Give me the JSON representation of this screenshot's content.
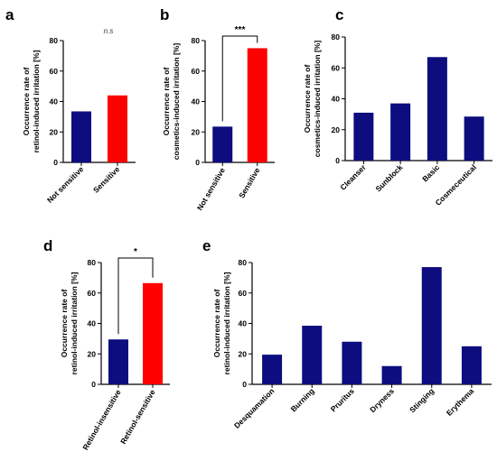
{
  "chart_data": [
    {
      "type": "bar",
      "panel": "a",
      "categories": [
        "Not sensitive",
        "Sensitive"
      ],
      "values": [
        33.5,
        44
      ],
      "colors": [
        "#0d0d80",
        "#ff0000"
      ],
      "ylabel": [
        "Occurrence rate of",
        "retinol-induced irritation [%]"
      ],
      "ylim": [
        0,
        80
      ],
      "yticks": [
        0,
        20,
        40,
        60,
        80
      ],
      "annotation": "n.s",
      "significance": null
    },
    {
      "type": "bar",
      "panel": "b",
      "categories": [
        "Not sensitive",
        "Sensitive"
      ],
      "values": [
        23.5,
        75
      ],
      "colors": [
        "#0d0d80",
        "#ff0000"
      ],
      "ylabel": [
        "Occurrence rate of",
        "cosmetics-induced irritation [%]"
      ],
      "ylim": [
        0,
        80
      ],
      "yticks": [
        0,
        20,
        40,
        60,
        80
      ],
      "annotation": "",
      "significance": "***"
    },
    {
      "type": "bar",
      "panel": "c",
      "categories": [
        "Cleanser",
        "Sunblock",
        "Basic",
        "Cosmeceutical"
      ],
      "values": [
        31,
        37,
        67,
        28.5
      ],
      "colors": [
        "#0d0d80",
        "#0d0d80",
        "#0d0d80",
        "#0d0d80"
      ],
      "ylabel": [
        "Occurrence rate of",
        "cosmetics-induced irritation [%]"
      ],
      "ylim": [
        0,
        80
      ],
      "yticks": [
        0,
        20,
        40,
        60,
        80
      ],
      "annotation": "",
      "significance": null
    },
    {
      "type": "bar",
      "panel": "d",
      "categories": [
        "Retinol-insensitive",
        "Retinol-sensitive"
      ],
      "values": [
        29.5,
        66.5
      ],
      "colors": [
        "#0d0d80",
        "#ff0000"
      ],
      "ylabel": [
        "Occurrence rate of",
        "retinol-induced irritation [%]"
      ],
      "ylim": [
        0,
        80
      ],
      "yticks": [
        0,
        20,
        40,
        60,
        80
      ],
      "annotation": "",
      "significance": "*"
    },
    {
      "type": "bar",
      "panel": "e",
      "categories": [
        "Desquamation",
        "Burning",
        "Pruritus",
        "Dryness",
        "Stinging",
        "Erythema"
      ],
      "values": [
        19.5,
        38.5,
        28,
        12,
        77,
        25
      ],
      "colors": [
        "#0d0d80",
        "#0d0d80",
        "#0d0d80",
        "#0d0d80",
        "#0d0d80",
        "#0d0d80"
      ],
      "ylabel": [
        "Occurrence rate of",
        "retinol-induced irritation [%]"
      ],
      "ylim": [
        0,
        80
      ],
      "yticks": [
        0,
        20,
        40,
        60,
        80
      ],
      "annotation": "",
      "significance": null
    }
  ]
}
